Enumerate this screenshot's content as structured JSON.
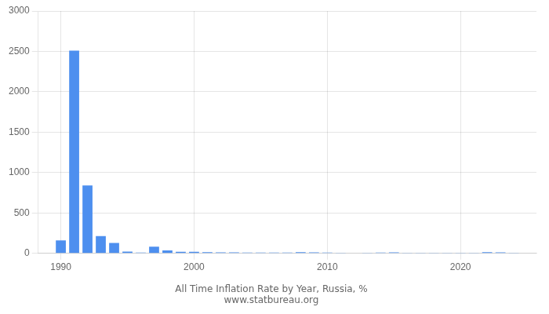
{
  "chart_data": {
    "type": "bar",
    "title": "All Time Inflation Rate by Year, Russia, %",
    "subtitle": "www.statbureau.org",
    "x": [
      1990,
      1991,
      1992,
      1993,
      1994,
      1995,
      1996,
      1997,
      1998,
      1999,
      2000,
      2001,
      2002,
      2003,
      2004,
      2005,
      2006,
      2007,
      2008,
      2009,
      2010,
      2011,
      2012,
      2013,
      2014,
      2015,
      2016,
      2017,
      2018,
      2019,
      2020,
      2021,
      2022,
      2023,
      2024
    ],
    "values": [
      160,
      2510,
      840,
      215,
      130,
      22,
      11,
      84,
      36,
      20,
      19,
      15,
      12,
      12,
      11,
      9,
      9,
      9,
      14,
      12,
      9,
      7,
      6,
      7,
      11,
      13,
      7,
      4,
      4,
      3,
      4,
      8,
      14,
      12,
      8
    ],
    "color": "#4d8fef",
    "xlim": [
      1988.3,
      2025.7
    ],
    "xticks": [
      1990,
      2000,
      2010,
      2020
    ],
    "ylim": [
      0,
      3000
    ],
    "yticks": [
      0,
      500,
      1000,
      1500,
      2000,
      2500,
      3000
    ],
    "grid": true
  }
}
